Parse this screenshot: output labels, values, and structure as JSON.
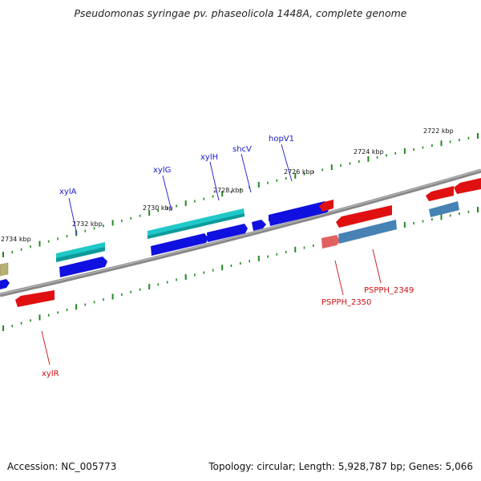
{
  "title": "Pseudomonas syringae pv. phaseolicola 1448A, complete genome",
  "footer": {
    "accession": "Accession: NC_005773",
    "topology": "Topology: circular; Length: 5,928,787 bp; Genes: 5,066"
  },
  "colors": {
    "backbone": "#777777",
    "tick": "#228822",
    "gene_blue": "#1010e0",
    "gene_cyan": "#20c8c8",
    "gene_red": "#e01010",
    "gene_pink": "#e06060",
    "gene_steel": "#4682b4",
    "gene_olive": "#b8b070",
    "label_blue": "#1a1acc",
    "label_red": "#cc1111"
  },
  "kbp_labels": [
    "2734 kbp",
    "2732 kbp",
    "2730 kbp",
    "2728 kbp",
    "2726 kbp",
    "2724 kbp",
    "2722 kbp"
  ],
  "gene_labels": {
    "forward": [
      "xylA",
      "xylG",
      "xylH",
      "shcV",
      "hopV1"
    ],
    "reverse": [
      "xylR",
      "PSPPH_2350",
      "PSPPH_2349"
    ]
  }
}
